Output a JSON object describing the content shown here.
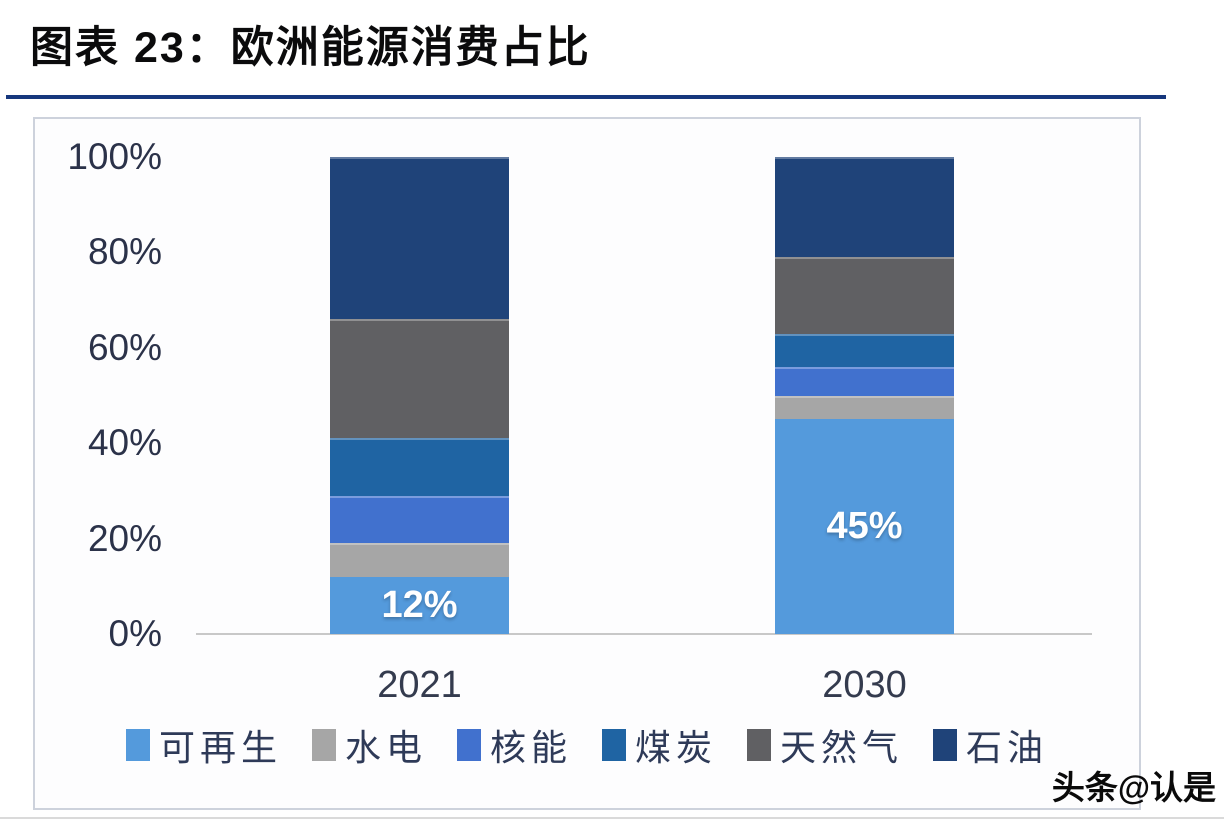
{
  "title": "图表 23：欧洲能源消费占比",
  "watermark": "头条@认是",
  "colors": {
    "accent_rule": "#16377d",
    "axis_line": "#c8c8c8",
    "panel_border": "#cdd2dc",
    "tick_label": "#2b3249",
    "xtick_label": "#343b4e",
    "legend_label": "#2e3a58",
    "data_label": "#ffffff"
  },
  "chart_data": {
    "type": "bar",
    "stacked": true,
    "title": "",
    "xlabel": "",
    "ylabel": "",
    "categories": [
      "2021",
      "2030"
    ],
    "series": [
      {
        "name": "可再生",
        "color": "#549adc",
        "values": [
          12,
          45
        ]
      },
      {
        "name": "水电",
        "color": "#a6a6a6",
        "values": [
          7,
          5
        ]
      },
      {
        "name": "核能",
        "color": "#4171ce",
        "values": [
          10,
          6
        ]
      },
      {
        "name": "煤炭",
        "color": "#1f64a3",
        "values": [
          12,
          7
        ]
      },
      {
        "name": "天然气",
        "color": "#606063",
        "values": [
          25,
          16
        ]
      },
      {
        "name": "石油",
        "color": "#1f4379",
        "values": [
          34,
          21
        ]
      }
    ],
    "data_labels": [
      {
        "category_index": 0,
        "series_index": 0,
        "text": "12%"
      },
      {
        "category_index": 1,
        "series_index": 0,
        "text": "45%"
      }
    ],
    "yticks": [
      "0%",
      "20%",
      "40%",
      "60%",
      "80%",
      "100%"
    ],
    "ylim": [
      0,
      100
    ],
    "grid": false,
    "legend_position": "bottom"
  }
}
